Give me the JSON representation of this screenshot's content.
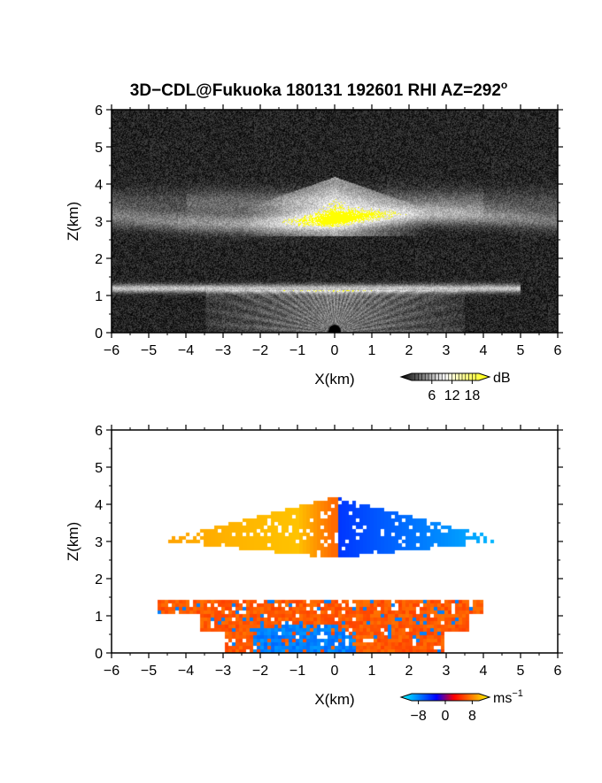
{
  "title": "3D−CDL@Fukuoka 180131 192601 RHI AZ=292",
  "title_superscript": "o",
  "chart_data": [
    {
      "type": "heatmap",
      "name": "backscatter",
      "xlabel": "X(km)",
      "ylabel": "Z(km)",
      "xlim": [
        -6,
        6
      ],
      "ylim": [
        0,
        6
      ],
      "xticks": [
        "−6",
        "−5",
        "−4",
        "−3",
        "−2",
        "−1",
        "0",
        "1",
        "2",
        "3",
        "4",
        "5",
        "6"
      ],
      "yticks": [
        "0",
        "1",
        "2",
        "3",
        "4",
        "5",
        "6"
      ],
      "colorbar": {
        "unit": "dB",
        "ticks": [
          "6",
          "12",
          "18"
        ],
        "tick_values": [
          6,
          12,
          18
        ],
        "range": [
          0,
          20
        ],
        "colors": [
          "#000000",
          "#ffffff",
          "#ffff00"
        ]
      },
      "layers": [
        {
          "feature": "upper cloud layer",
          "z_center": 3.0,
          "z_range": [
            2.6,
            3.6
          ],
          "x_range": [
            -6,
            6
          ]
        },
        {
          "feature": "upper peak",
          "x": 0.0,
          "z_top": 4.2
        },
        {
          "feature": "lower cloud layer",
          "z_center": 1.2,
          "z_range": [
            1.05,
            1.35
          ],
          "x_range": [
            -6,
            5
          ]
        },
        {
          "feature": "near-ground fan",
          "z_range": [
            0,
            1.2
          ],
          "x_range": [
            -3.5,
            3.5
          ]
        }
      ]
    },
    {
      "type": "heatmap",
      "name": "doppler velocity",
      "xlabel": "X(km)",
      "ylabel": "Z(km)",
      "xlim": [
        -6,
        6
      ],
      "ylim": [
        0,
        6
      ],
      "xticks": [
        "−6",
        "−5",
        "−4",
        "−3",
        "−2",
        "−1",
        "0",
        "1",
        "2",
        "3",
        "4",
        "5",
        "6"
      ],
      "yticks": [
        "0",
        "1",
        "2",
        "3",
        "4",
        "5",
        "6"
      ],
      "colorbar": {
        "unit": "ms",
        "unit_superscript": "−1",
        "ticks": [
          "−8",
          "0",
          "8"
        ],
        "tick_values": [
          -8,
          0,
          8
        ],
        "range": [
          -10,
          10
        ],
        "colors": [
          "#00ffff",
          "#0080ff",
          "#0000ff",
          "#ff0000",
          "#ff8000",
          "#ffff00"
        ]
      },
      "layers": [
        {
          "feature": "upper layer",
          "z_range": [
            2.5,
            4.2
          ],
          "x_range": [
            -5.1,
            6.0
          ],
          "velocity_left": 8,
          "velocity_right": -8
        },
        {
          "feature": "lower layer",
          "z_range": [
            0.0,
            1.5
          ],
          "x_range": [
            -4.8,
            4.0
          ],
          "velocity": 3
        },
        {
          "feature": "lower core",
          "z_range": [
            0.0,
            0.8
          ],
          "x_range": [
            -2.2,
            0.6
          ],
          "velocity": -5
        }
      ]
    }
  ]
}
